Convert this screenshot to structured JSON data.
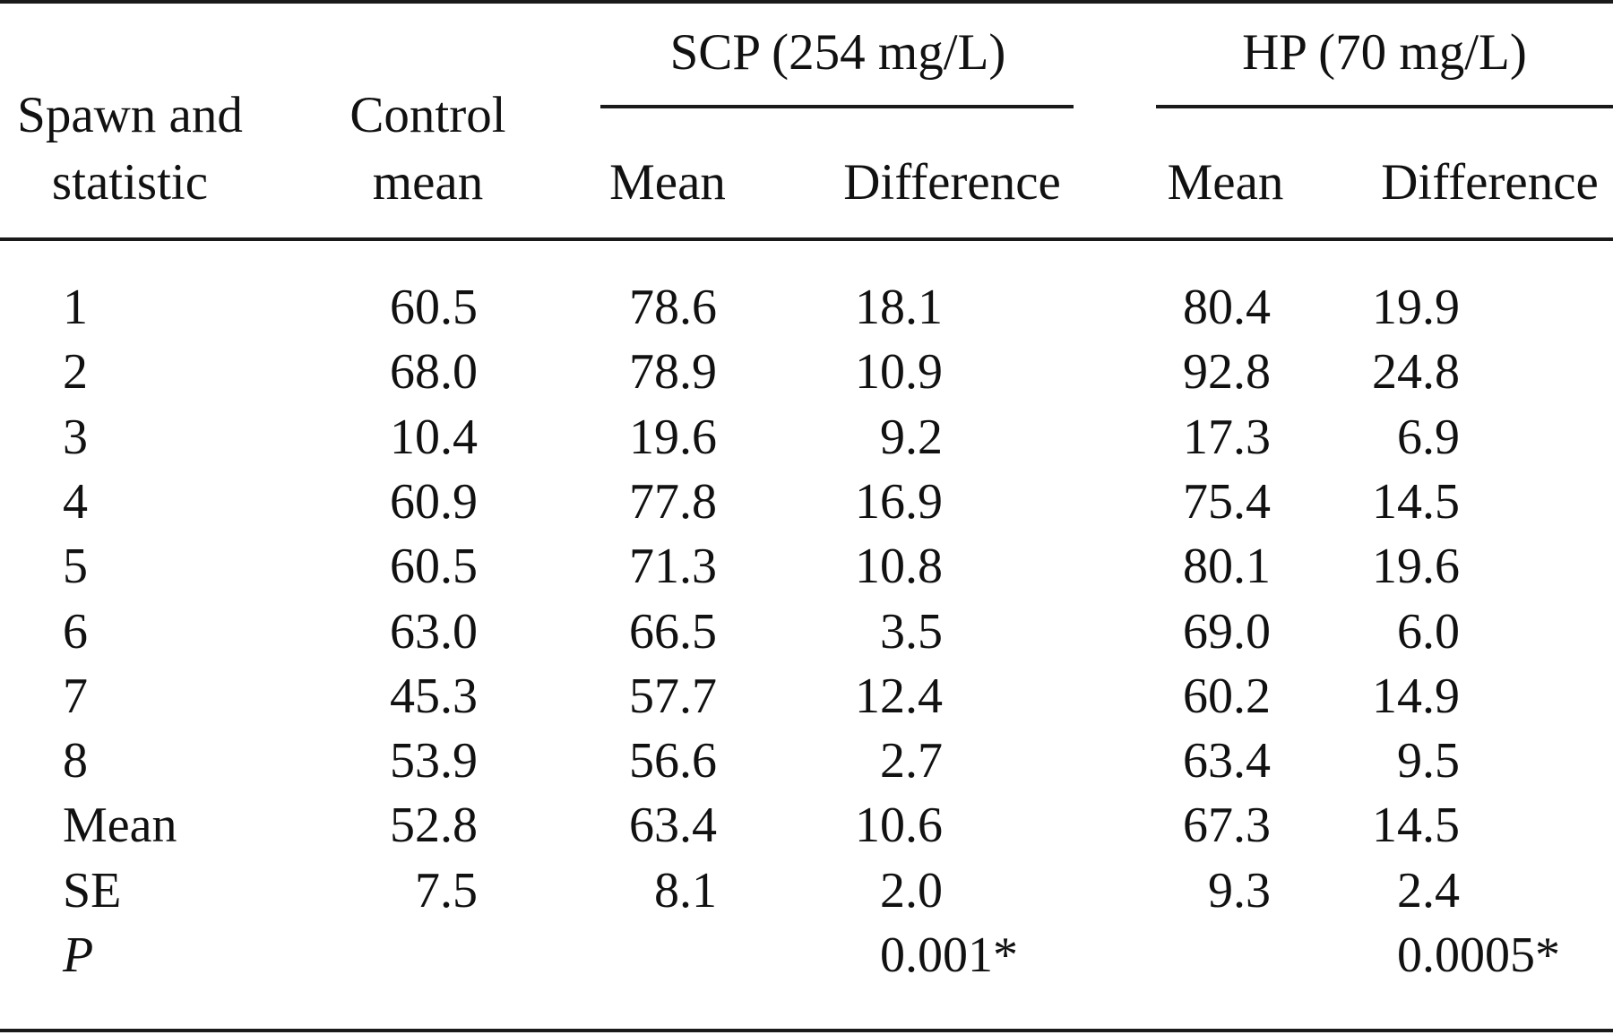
{
  "header": {
    "group_scp": "SCP (254 mg/L)",
    "group_hp": "HP (70 mg/L)",
    "col_spawn_line1": "Spawn and",
    "col_spawn_line2": "statistic",
    "col_control_line1": "Control",
    "col_control_line2": "mean",
    "scp_mean": "Mean",
    "scp_diff": "Difference",
    "hp_mean": "Mean",
    "hp_diff": "Difference"
  },
  "rows": [
    {
      "label": "1",
      "control": "60.5",
      "scp_mean": "78.6",
      "scp_diff": "18.1",
      "hp_mean": "80.4",
      "hp_diff": "19.9"
    },
    {
      "label": "2",
      "control": "68.0",
      "scp_mean": "78.9",
      "scp_diff": "10.9",
      "hp_mean": "92.8",
      "hp_diff": "24.8"
    },
    {
      "label": "3",
      "control": "10.4",
      "scp_mean": "19.6",
      "scp_diff": "9.2",
      "hp_mean": "17.3",
      "hp_diff": "6.9"
    },
    {
      "label": "4",
      "control": "60.9",
      "scp_mean": "77.8",
      "scp_diff": "16.9",
      "hp_mean": "75.4",
      "hp_diff": "14.5"
    },
    {
      "label": "5",
      "control": "60.5",
      "scp_mean": "71.3",
      "scp_diff": "10.8",
      "hp_mean": "80.1",
      "hp_diff": "19.6"
    },
    {
      "label": "6",
      "control": "63.0",
      "scp_mean": "66.5",
      "scp_diff": "3.5",
      "hp_mean": "69.0",
      "hp_diff": "6.0"
    },
    {
      "label": "7",
      "control": "45.3",
      "scp_mean": "57.7",
      "scp_diff": "12.4",
      "hp_mean": "60.2",
      "hp_diff": "14.9"
    },
    {
      "label": "8",
      "control": "53.9",
      "scp_mean": "56.6",
      "scp_diff": "2.7",
      "hp_mean": "63.4",
      "hp_diff": "9.5"
    },
    {
      "label": "Mean",
      "control": "52.8",
      "scp_mean": "63.4",
      "scp_diff": "10.6",
      "hp_mean": "67.3",
      "hp_diff": "14.5"
    },
    {
      "label": "SE",
      "control": "7.5",
      "scp_mean": "8.1",
      "scp_diff": "2.0",
      "hp_mean": "9.3",
      "hp_diff": "2.4"
    },
    {
      "label": "P",
      "control": "",
      "scp_mean": "",
      "scp_diff": "0.001*",
      "hp_mean": "",
      "hp_diff": "0.0005*"
    }
  ]
}
